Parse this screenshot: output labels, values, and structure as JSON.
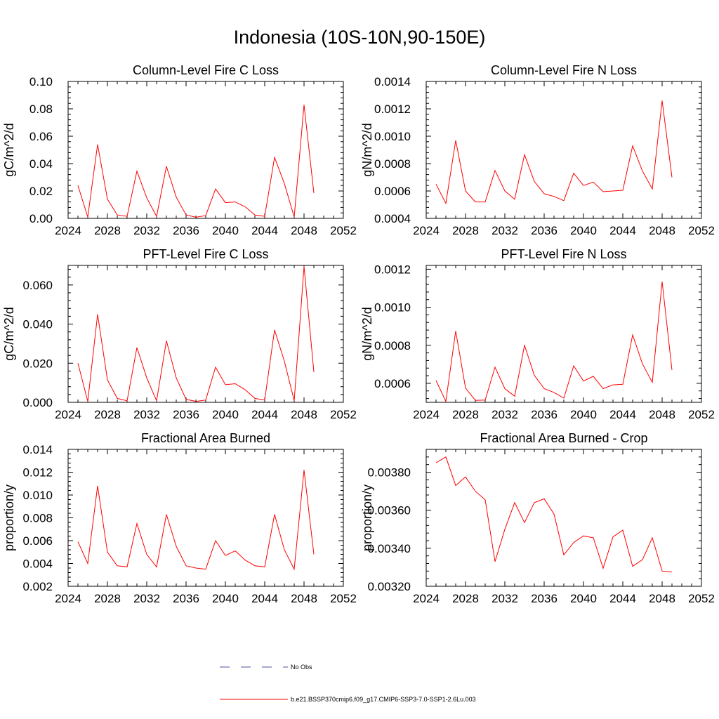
{
  "title": "Indonesia (10S-10N,90-150E)",
  "colors": {
    "series": "#ff0000",
    "obs": "#4a55a0",
    "axis": "#000000"
  },
  "legend": [
    {
      "label": "No Obs",
      "style": "dashed",
      "color": "#4a55a0"
    },
    {
      "label": "b.e21.BSSP370cmip6.f09_g17.CMIP6-SSP3-7.0-SSP1-2.6Lu.003",
      "style": "solid",
      "color": "#ff0000"
    }
  ],
  "chart_data": [
    {
      "type": "line",
      "title": "Column-Level Fire C Loss",
      "ylabel": "gC/m^2/d",
      "xlim": [
        2024,
        2052
      ],
      "ylim": [
        0,
        0.1
      ],
      "xticks": [
        2024,
        2028,
        2032,
        2036,
        2040,
        2044,
        2048,
        2052
      ],
      "yticks": [
        0.0,
        0.02,
        0.04,
        0.06,
        0.08,
        0.1
      ],
      "ytick_labels": [
        "0.00",
        "0.02",
        "0.04",
        "0.06",
        "0.08",
        "0.10"
      ],
      "x": [
        2025,
        2026,
        2027,
        2028,
        2029,
        2030,
        2031,
        2032,
        2033,
        2034,
        2035,
        2036,
        2037,
        2038,
        2039,
        2040,
        2041,
        2042,
        2043,
        2044,
        2045,
        2046,
        2047,
        2048,
        2049
      ],
      "series": [
        {
          "name": "b.e21.BSSP370cmip6.f09_g17.CMIP6-SSP3-7.0-SSP1-2.6Lu.003",
          "values": [
            0.024,
            0.001,
            0.054,
            0.014,
            0.0025,
            0.0015,
            0.0345,
            0.015,
            0.0015,
            0.038,
            0.0155,
            0.0025,
            0.0008,
            0.002,
            0.0215,
            0.0115,
            0.012,
            0.0085,
            0.0025,
            0.0015,
            0.0445,
            0.0255,
            0.001,
            0.083,
            0.0185
          ]
        }
      ]
    },
    {
      "type": "line",
      "title": "Column-Level Fire N Loss",
      "ylabel": "gN/m^2/d",
      "xlim": [
        2024,
        2052
      ],
      "ylim": [
        0.0004,
        0.0014
      ],
      "xticks": [
        2024,
        2028,
        2032,
        2036,
        2040,
        2044,
        2048,
        2052
      ],
      "yticks": [
        0.0004,
        0.0006,
        0.0008,
        0.001,
        0.0012,
        0.0014
      ],
      "ytick_labels": [
        "0.0004",
        "0.0006",
        "0.0008",
        "0.0010",
        "0.0012",
        "0.0014"
      ],
      "x": [
        2025,
        2026,
        2027,
        2028,
        2029,
        2030,
        2031,
        2032,
        2033,
        2034,
        2035,
        2036,
        2037,
        2038,
        2039,
        2040,
        2041,
        2042,
        2043,
        2044,
        2045,
        2046,
        2047,
        2048,
        2049
      ],
      "series": [
        {
          "name": "b.e21.BSSP370cmip6.f09_g17.CMIP6-SSP3-7.0-SSP1-2.6Lu.003",
          "values": [
            0.00065,
            0.00051,
            0.00097,
            0.0006,
            0.00052,
            0.00052,
            0.00075,
            0.0006,
            0.00054,
            0.000865,
            0.00067,
            0.00058,
            0.00056,
            0.00053,
            0.00073,
            0.00064,
            0.000665,
            0.000595,
            0.0006,
            0.000605,
            0.00093,
            0.000745,
            0.000615,
            0.00126,
            0.0007
          ]
        }
      ]
    },
    {
      "type": "line",
      "title": "PFT-Level Fire C Loss",
      "ylabel": "gC/m^2/d",
      "xlim": [
        2024,
        2052
      ],
      "ylim": [
        0,
        0.07
      ],
      "xticks": [
        2024,
        2028,
        2032,
        2036,
        2040,
        2044,
        2048,
        2052
      ],
      "yticks": [
        0.0,
        0.02,
        0.04,
        0.06
      ],
      "ytick_labels": [
        "0.000",
        "0.020",
        "0.040",
        "0.060"
      ],
      "x": [
        2025,
        2026,
        2027,
        2028,
        2029,
        2030,
        2031,
        2032,
        2033,
        2034,
        2035,
        2036,
        2037,
        2038,
        2039,
        2040,
        2041,
        2042,
        2043,
        2044,
        2045,
        2046,
        2047,
        2048,
        2049
      ],
      "series": [
        {
          "name": "b.e21.BSSP370cmip6.f09_g17.CMIP6-SSP3-7.0-SSP1-2.6Lu.003",
          "values": [
            0.02,
            0.0005,
            0.045,
            0.0115,
            0.002,
            0.0008,
            0.028,
            0.0125,
            0.0008,
            0.0315,
            0.0125,
            0.0015,
            0.0005,
            0.0012,
            0.018,
            0.009,
            0.0095,
            0.0065,
            0.002,
            0.0012,
            0.037,
            0.021,
            0.0008,
            0.0695,
            0.0155
          ]
        }
      ]
    },
    {
      "type": "line",
      "title": "PFT-Level Fire N Loss",
      "ylabel": "gN/m^2/d",
      "xlim": [
        2024,
        2052
      ],
      "ylim": [
        0.0005,
        0.00122
      ],
      "xticks": [
        2024,
        2028,
        2032,
        2036,
        2040,
        2044,
        2048,
        2052
      ],
      "yticks": [
        0.0006,
        0.0008,
        0.001,
        0.0012
      ],
      "ytick_labels": [
        "0.0006",
        "0.0008",
        "0.0010",
        "0.0012"
      ],
      "x": [
        2025,
        2026,
        2027,
        2028,
        2029,
        2030,
        2031,
        2032,
        2033,
        2034,
        2035,
        2036,
        2037,
        2038,
        2039,
        2040,
        2041,
        2042,
        2043,
        2044,
        2045,
        2046,
        2047,
        2048,
        2049
      ],
      "series": [
        {
          "name": "b.e21.BSSP370cmip6.f09_g17.CMIP6-SSP3-7.0-SSP1-2.6Lu.003",
          "values": [
            0.000615,
            0.000505,
            0.000875,
            0.000575,
            0.00051,
            0.000512,
            0.000685,
            0.000572,
            0.000532,
            0.0008,
            0.000642,
            0.000572,
            0.000552,
            0.000522,
            0.000692,
            0.000612,
            0.000637,
            0.000572,
            0.000592,
            0.000595,
            0.000855,
            0.000702,
            0.000605,
            0.001135,
            0.00067
          ]
        }
      ]
    },
    {
      "type": "line",
      "title": "Fractional Area Burned",
      "ylabel": "proportion/y",
      "xlim": [
        2024,
        2052
      ],
      "ylim": [
        0.002,
        0.014
      ],
      "xticks": [
        2024,
        2028,
        2032,
        2036,
        2040,
        2044,
        2048,
        2052
      ],
      "yticks": [
        0.002,
        0.004,
        0.006,
        0.008,
        0.01,
        0.012,
        0.014
      ],
      "ytick_labels": [
        "0.002",
        "0.004",
        "0.006",
        "0.008",
        "0.010",
        "0.012",
        "0.014"
      ],
      "x": [
        2025,
        2026,
        2027,
        2028,
        2029,
        2030,
        2031,
        2032,
        2033,
        2034,
        2035,
        2036,
        2037,
        2038,
        2039,
        2040,
        2041,
        2042,
        2043,
        2044,
        2045,
        2046,
        2047,
        2048,
        2049
      ],
      "series": [
        {
          "name": "b.e21.BSSP370cmip6.f09_g17.CMIP6-SSP3-7.0-SSP1-2.6Lu.003",
          "values": [
            0.0059,
            0.004,
            0.0108,
            0.005,
            0.0038,
            0.0037,
            0.0075,
            0.0048,
            0.0037,
            0.0083,
            0.0055,
            0.0038,
            0.0036,
            0.0035,
            0.006,
            0.0047,
            0.0051,
            0.0043,
            0.0038,
            0.0037,
            0.0083,
            0.0052,
            0.0035,
            0.0122,
            0.0048
          ]
        }
      ]
    },
    {
      "type": "line",
      "title": "Fractional Area Burned - Crop",
      "ylabel": "proportion/y",
      "xlim": [
        2024,
        2052
      ],
      "ylim": [
        0.0032,
        0.00392
      ],
      "xticks": [
        2024,
        2028,
        2032,
        2036,
        2040,
        2044,
        2048,
        2052
      ],
      "yticks": [
        0.0032,
        0.0034,
        0.0036,
        0.0038
      ],
      "ytick_labels": [
        "0.00320",
        "0.00340",
        "0.00360",
        "0.00380"
      ],
      "x": [
        2025,
        2026,
        2027,
        2028,
        2029,
        2030,
        2031,
        2032,
        2033,
        2034,
        2035,
        2036,
        2037,
        2038,
        2039,
        2040,
        2041,
        2042,
        2043,
        2044,
        2045,
        2046,
        2047,
        2048,
        2049
      ],
      "series": [
        {
          "name": "b.e21.BSSP370cmip6.f09_g17.CMIP6-SSP3-7.0-SSP1-2.6Lu.003",
          "values": [
            0.00385,
            0.00388,
            0.00373,
            0.003775,
            0.0037,
            0.003655,
            0.00333,
            0.0035,
            0.00364,
            0.003535,
            0.00364,
            0.00366,
            0.00358,
            0.003365,
            0.00343,
            0.003465,
            0.003455,
            0.003295,
            0.00346,
            0.003495,
            0.003305,
            0.00334,
            0.003455,
            0.00328,
            0.003275
          ]
        }
      ]
    }
  ]
}
